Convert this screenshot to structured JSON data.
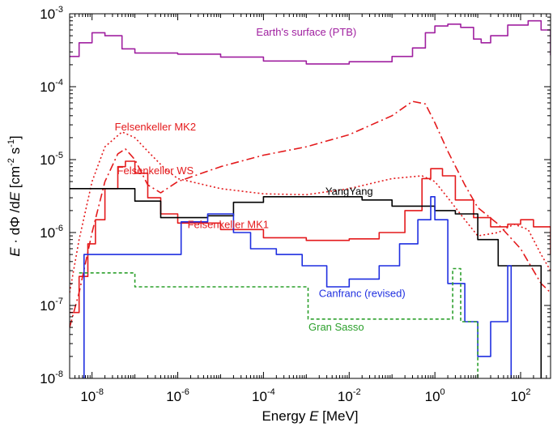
{
  "chart_data": {
    "type": "line",
    "xlabel": {
      "prefix": "Energy ",
      "var": "E",
      "unit": "  [MeV]"
    },
    "ylabel": {
      "e": "E",
      "mid": " · dΦ /d",
      "e2": "E",
      "unit": "  [cm",
      "exp1": "-2",
      "s": " s",
      "exp2": "-1",
      "close": "]"
    },
    "x_scale": "log",
    "y_scale": "log",
    "xlim": [
      3e-09,
      500
    ],
    "ylim": [
      1e-08,
      0.001
    ],
    "x_ticks": [
      {
        "value": 1e-08,
        "base": "10",
        "exp": "-8"
      },
      {
        "value": 1e-06,
        "base": "10",
        "exp": "-6"
      },
      {
        "value": 0.0001,
        "base": "10",
        "exp": "-4"
      },
      {
        "value": 0.01,
        "base": "10",
        "exp": "-2"
      },
      {
        "value": 1,
        "base": "10",
        "exp": "0"
      },
      {
        "value": 100,
        "base": "10",
        "exp": "2"
      }
    ],
    "y_ticks": [
      {
        "value": 1e-08,
        "base": "10",
        "exp": "-8"
      },
      {
        "value": 1e-07,
        "base": "10",
        "exp": "-7"
      },
      {
        "value": 1e-06,
        "base": "10",
        "exp": "-6"
      },
      {
        "value": 1e-05,
        "base": "10",
        "exp": "-5"
      },
      {
        "value": 0.0001,
        "base": "10",
        "exp": "-4"
      },
      {
        "value": 0.001,
        "base": "10",
        "exp": "-3"
      }
    ],
    "grid": false,
    "series": [
      {
        "name": "Earth's surface (PTB)",
        "color": "#a020a0",
        "style": "solid",
        "step": true,
        "label_at": [
          0.001,
          0.0005
        ],
        "points": [
          [
            3e-09,
            0.00026
          ],
          [
            5e-09,
            0.0004
          ],
          [
            1e-08,
            0.00055
          ],
          [
            2e-08,
            0.0005
          ],
          [
            5e-08,
            0.00033
          ],
          [
            1e-07,
            0.00029
          ],
          [
            1e-06,
            0.00028
          ],
          [
            1e-05,
            0.000255
          ],
          [
            0.0001,
            0.000225
          ],
          [
            0.001,
            0.000205
          ],
          [
            0.01,
            0.00022
          ],
          [
            0.1,
            0.00026
          ],
          [
            0.3,
            0.00034
          ],
          [
            0.6,
            0.00055
          ],
          [
            1,
            0.00068
          ],
          [
            2,
            0.00072
          ],
          [
            4,
            0.00065
          ],
          [
            8,
            0.00045
          ],
          [
            12,
            0.0004
          ],
          [
            20,
            0.0005
          ],
          [
            50,
            0.0007
          ],
          [
            150,
            0.0008
          ],
          [
            300,
            0.0006
          ],
          [
            500,
            0.00027
          ]
        ]
      },
      {
        "name": "Felsenkeller MK2",
        "color": "#e41a1c",
        "style": "dashdot",
        "step": false,
        "label_at": [
          3e-07,
          2.5e-05
        ],
        "points": [
          [
            3e-09,
            5e-08
          ],
          [
            5e-09,
            1.5e-07
          ],
          [
            1e-08,
            1e-06
          ],
          [
            2e-08,
            5e-06
          ],
          [
            4e-08,
            1.2e-05
          ],
          [
            6e-08,
            1.4e-05
          ],
          [
            1e-07,
            1e-05
          ],
          [
            2e-07,
            4.5e-06
          ],
          [
            4e-07,
            3.5e-06
          ],
          [
            1e-06,
            5e-06
          ],
          [
            1e-05,
            8e-06
          ],
          [
            0.0001,
            1.15e-05
          ],
          [
            0.001,
            1.5e-05
          ],
          [
            0.01,
            2.2e-05
          ],
          [
            0.1,
            4e-05
          ],
          [
            0.3,
            6.3e-05
          ],
          [
            0.6,
            5.8e-05
          ],
          [
            1,
            3.2e-05
          ],
          [
            2,
            1.3e-05
          ],
          [
            5,
            4.5e-06
          ],
          [
            10,
            2.2e-06
          ],
          [
            30,
            1.3e-06
          ],
          [
            100,
            6e-07
          ],
          [
            300,
            2e-07
          ],
          [
            500,
            1.5e-07
          ]
        ]
      },
      {
        "name": "Felsenkeller WS",
        "color": "#e41a1c",
        "style": "dotted",
        "step": false,
        "label_at": [
          3e-07,
          6.3e-06
        ],
        "points": [
          [
            3e-09,
            1.5e-07
          ],
          [
            5e-09,
            8e-07
          ],
          [
            1e-08,
            5e-06
          ],
          [
            2e-08,
            1.5e-05
          ],
          [
            5e-08,
            2.4e-05
          ],
          [
            1e-07,
            2e-05
          ],
          [
            2e-07,
            1.3e-05
          ],
          [
            5e-07,
            7.5e-06
          ],
          [
            1e-06,
            5.5e-06
          ],
          [
            1e-05,
            4e-06
          ],
          [
            0.0001,
            3.4e-06
          ],
          [
            0.001,
            3.3e-06
          ],
          [
            0.01,
            4e-06
          ],
          [
            0.1,
            5.5e-06
          ],
          [
            0.5,
            6e-06
          ],
          [
            1,
            5e-06
          ],
          [
            2,
            3e-06
          ],
          [
            5,
            1.5e-06
          ],
          [
            10,
            9e-07
          ],
          [
            30,
            1e-06
          ],
          [
            70,
            1.3e-06
          ],
          [
            150,
            1.1e-06
          ],
          [
            300,
            5e-07
          ],
          [
            500,
            3e-07
          ]
        ]
      },
      {
        "name": "Felsenkeller MK1",
        "color": "#e41a1c",
        "style": "solid",
        "step": true,
        "label_at": [
          1.5e-05,
          1.15e-06
        ],
        "points": [
          [
            3e-09,
            8e-08
          ],
          [
            5e-09,
            2.5e-07
          ],
          [
            8e-09,
            7e-07
          ],
          [
            1.2e-08,
            1.5e-06
          ],
          [
            2e-08,
            4e-06
          ],
          [
            4e-08,
            8e-06
          ],
          [
            6e-08,
            9.5e-06
          ],
          [
            1e-07,
            6.5e-06
          ],
          [
            2e-07,
            3e-06
          ],
          [
            4e-07,
            1.8e-06
          ],
          [
            1e-06,
            1.35e-06
          ],
          [
            1e-05,
            1.1e-06
          ],
          [
            0.0001,
            8.5e-07
          ],
          [
            0.001,
            7.8e-07
          ],
          [
            0.01,
            8.2e-07
          ],
          [
            0.05,
            1e-06
          ],
          [
            0.2,
            2e-06
          ],
          [
            0.5,
            5.5e-06
          ],
          [
            0.8,
            7.5e-06
          ],
          [
            1.5,
            6e-06
          ],
          [
            3,
            2.8e-06
          ],
          [
            8,
            1.6e-06
          ],
          [
            20,
            1.2e-06
          ],
          [
            50,
            1.3e-06
          ],
          [
            100,
            1.5e-06
          ],
          [
            200,
            1.2e-06
          ],
          [
            500,
            5e-07
          ]
        ]
      },
      {
        "name": "YangYang",
        "color": "#000000",
        "style": "solid",
        "step": true,
        "label_at": [
          0.01,
          3.3e-06
        ],
        "points": [
          [
            3e-09,
            4e-06
          ],
          [
            4e-08,
            4e-06
          ],
          [
            1e-07,
            2.7e-06
          ],
          [
            4e-07,
            1.6e-06
          ],
          [
            5e-06,
            1.7e-06
          ],
          [
            2e-05,
            2.6e-06
          ],
          [
            0.0001,
            3.1e-06
          ],
          [
            0.001,
            3.1e-06
          ],
          [
            0.02,
            2.8e-06
          ],
          [
            0.1,
            2.3e-06
          ],
          [
            1,
            2e-06
          ],
          [
            3,
            1.8e-06
          ],
          [
            10,
            8e-07
          ],
          [
            30,
            3.5e-07
          ],
          [
            200,
            3.5e-07
          ],
          [
            300,
            1e-08
          ]
        ]
      },
      {
        "name": "Canfranc (revised)",
        "color": "#1f2fe0",
        "style": "solid",
        "step": true,
        "label_at": [
          0.02,
          1.3e-07
        ],
        "points": [
          [
            6e-09,
            1e-08
          ],
          [
            6.5e-09,
            5e-07
          ],
          [
            1e-06,
            5e-07
          ],
          [
            1.2e-06,
            1.4e-06
          ],
          [
            5e-06,
            1.8e-06
          ],
          [
            2e-05,
            1e-06
          ],
          [
            5e-05,
            6e-07
          ],
          [
            0.0002,
            5e-07
          ],
          [
            0.0008,
            3.5e-07
          ],
          [
            0.003,
            1.8e-07
          ],
          [
            0.01,
            2.3e-07
          ],
          [
            0.05,
            3.5e-07
          ],
          [
            0.15,
            7e-07
          ],
          [
            0.4,
            1.5e-06
          ],
          [
            0.8,
            3.1e-06
          ],
          [
            1,
            1.5e-06
          ],
          [
            2,
            2e-07
          ],
          [
            5,
            6e-08
          ],
          [
            10,
            2e-08
          ],
          [
            20,
            6e-08
          ],
          [
            50,
            3.5e-07
          ],
          [
            60,
            1e-08
          ]
        ]
      },
      {
        "name": "Gran Sasso",
        "color": "#2ca02c",
        "style": "dashed",
        "step": true,
        "label_at": [
          0.005,
          4.5e-08
        ],
        "points": [
          [
            5e-09,
            2.8e-07
          ],
          [
            7e-08,
            2.8e-07
          ],
          [
            1e-07,
            1.8e-07
          ],
          [
            0.001,
            1.8e-07
          ],
          [
            0.0011,
            6.5e-08
          ],
          [
            0.01,
            6.5e-08
          ],
          [
            2.5,
            6.5e-08
          ],
          [
            2.6,
            3.2e-07
          ],
          [
            3,
            3.2e-07
          ],
          [
            4,
            6e-08
          ],
          [
            8,
            6e-08
          ],
          [
            10,
            1e-08
          ]
        ]
      }
    ]
  }
}
